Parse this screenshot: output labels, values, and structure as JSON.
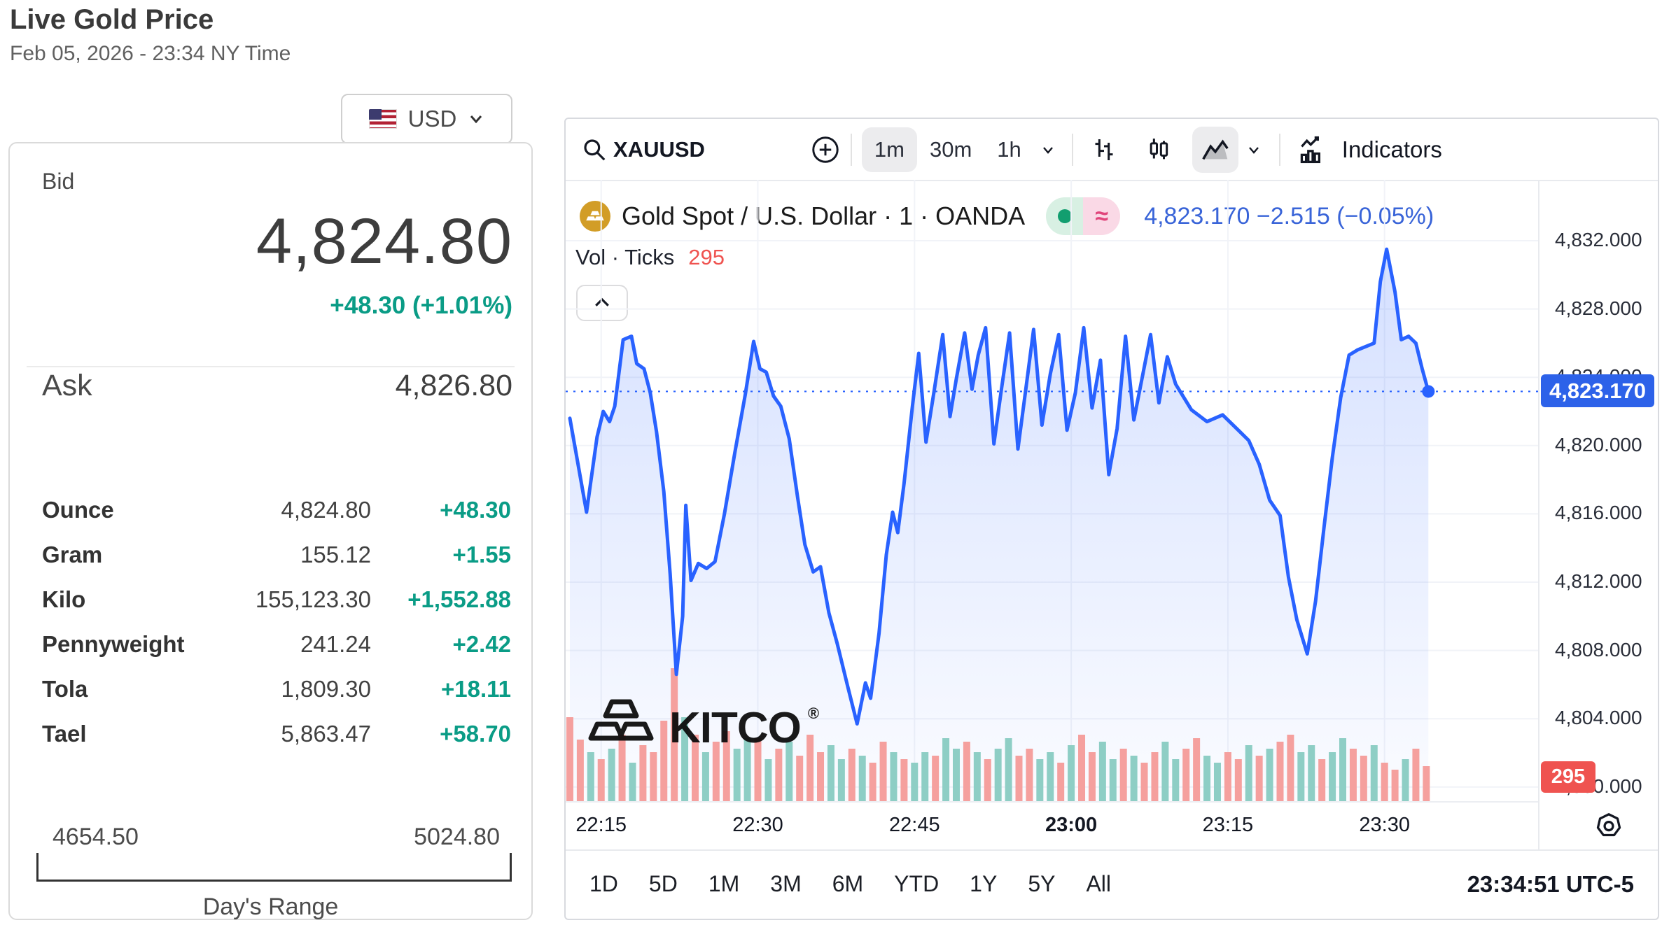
{
  "page": {
    "title": "Live Gold Price",
    "subtitle": "Feb 05, 2026 - 23:34 NY Time"
  },
  "currency": {
    "selected": "USD",
    "flag": "us-flag"
  },
  "bid_panel": {
    "bid_label": "Bid",
    "bid_value": "4,824.80",
    "bid_change": "+48.30 (+1.01%)",
    "ask_label": "Ask",
    "ask_value": "4,826.80"
  },
  "conversions": [
    {
      "unit": "Ounce",
      "price": "4,824.80",
      "change": "+48.30"
    },
    {
      "unit": "Gram",
      "price": "155.12",
      "change": "+1.55"
    },
    {
      "unit": "Kilo",
      "price": "155,123.30",
      "change": "+1,552.88"
    },
    {
      "unit": "Pennyweight",
      "price": "241.24",
      "change": "+2.42"
    },
    {
      "unit": "Tola",
      "price": "1,809.30",
      "change": "+18.11"
    },
    {
      "unit": "Tael",
      "price": "5,863.47",
      "change": "+58.70"
    }
  ],
  "days_range": {
    "low": "4654.50",
    "high": "5024.80",
    "label": "Day's Range"
  },
  "toolbar": {
    "symbol": "XAUUSD",
    "intervals": [
      {
        "label": "1m",
        "selected": true
      },
      {
        "label": "30m",
        "selected": false
      },
      {
        "label": "1h",
        "selected": false
      }
    ],
    "indicators_label": "Indicators"
  },
  "legend": {
    "title": "Gold Spot / U.S. Dollar · 1 · OANDA",
    "price_line": "4,823.170 −2.515 (−0.05%)",
    "vol_label": "Vol · Ticks",
    "vol_value": "295",
    "approx_symbol": "≈"
  },
  "watermark": {
    "text": "KITCO",
    "reg": "®"
  },
  "bottom_bar": {
    "ranges": [
      "1D",
      "5D",
      "1M",
      "3M",
      "6M",
      "YTD",
      "1Y",
      "5Y",
      "All"
    ],
    "clock": "23:34:51 UTC-5"
  },
  "colors": {
    "accent_teal": "#0a9c86",
    "tv_blue": "#2962ff",
    "price_text_blue": "#3964d8",
    "red": "#ef5350",
    "vol_up": "#8ecec5",
    "vol_down": "#f5a09e",
    "gold": "#d29d27",
    "grid": "#f1f3f8",
    "dotted_price_line": "#2962ff"
  },
  "chart_data": {
    "type": "area",
    "title": "Gold Spot / U.S. Dollar · 1 · OANDA",
    "x_axis": "time (NY), minutes after 22:00",
    "y_axis": "price USD",
    "x_domain_min": [
      11.6,
      104.7
    ],
    "ylim": [
      4798.4,
      4835.6
    ],
    "grid": true,
    "current_price": 4823.17,
    "current_price_label": "4,823.170",
    "last_point_min": 94.2,
    "y_ticks": [
      {
        "price": 4832,
        "label": "4,832.000"
      },
      {
        "price": 4828,
        "label": "4,828.000"
      },
      {
        "price": 4824,
        "label": "4,824.000"
      },
      {
        "price": 4820,
        "label": "4,820.000"
      },
      {
        "price": 4816,
        "label": "4,816.000"
      },
      {
        "price": 4812,
        "label": "4,812.000"
      },
      {
        "price": 4808,
        "label": "4,808.000"
      },
      {
        "price": 4804,
        "label": "4,804.000"
      },
      {
        "price": 4800,
        "label": "4,800.000"
      }
    ],
    "x_ticks": [
      {
        "t": 15,
        "label": "22:15",
        "bold": false
      },
      {
        "t": 30,
        "label": "22:30",
        "bold": false
      },
      {
        "t": 45,
        "label": "22:45",
        "bold": false
      },
      {
        "t": 60,
        "label": "23:00",
        "bold": true
      },
      {
        "t": 75,
        "label": "23:15",
        "bold": false
      },
      {
        "t": 90,
        "label": "23:30",
        "bold": false
      }
    ],
    "series": [
      [
        12,
        4821.6
      ],
      [
        12.7,
        4819.2
      ],
      [
        13.6,
        4816.1
      ],
      [
        14.6,
        4820.5
      ],
      [
        15.2,
        4822
      ],
      [
        15.8,
        4821.4
      ],
      [
        16.3,
        4822.3
      ],
      [
        17.1,
        4826.2
      ],
      [
        17.9,
        4826.4
      ],
      [
        18.4,
        4824.8
      ],
      [
        19.1,
        4824.5
      ],
      [
        19.7,
        4823.1
      ],
      [
        20.3,
        4820.8
      ],
      [
        21,
        4817.3
      ],
      [
        21.6,
        4812.5
      ],
      [
        22.2,
        4806.6
      ],
      [
        22.8,
        4810
      ],
      [
        23.1,
        4816.5
      ],
      [
        23.6,
        4812.1
      ],
      [
        24.3,
        4813.1
      ],
      [
        25.1,
        4812.8
      ],
      [
        25.9,
        4813.2
      ],
      [
        26.8,
        4816
      ],
      [
        27.8,
        4819.6
      ],
      [
        28.8,
        4823
      ],
      [
        29.6,
        4826.1
      ],
      [
        30.2,
        4824.5
      ],
      [
        30.8,
        4824.3
      ],
      [
        31.5,
        4822.9
      ],
      [
        32.2,
        4822.3
      ],
      [
        33,
        4820.4
      ],
      [
        33.8,
        4817
      ],
      [
        34.5,
        4814.2
      ],
      [
        35.3,
        4812.6
      ],
      [
        36,
        4812.9
      ],
      [
        36.8,
        4810.2
      ],
      [
        37.6,
        4808.4
      ],
      [
        38.6,
        4805.9
      ],
      [
        39.5,
        4803.7
      ],
      [
        40.3,
        4806.1
      ],
      [
        40.8,
        4805.2
      ],
      [
        41.6,
        4809
      ],
      [
        42.3,
        4813.6
      ],
      [
        42.9,
        4816.1
      ],
      [
        43.4,
        4814.9
      ],
      [
        44,
        4817.8
      ],
      [
        44.8,
        4822.3
      ],
      [
        45.4,
        4825.4
      ],
      [
        46.1,
        4820.2
      ],
      [
        46.9,
        4823.3
      ],
      [
        47.7,
        4826.5
      ],
      [
        48.4,
        4821.7
      ],
      [
        49,
        4823.9
      ],
      [
        49.8,
        4826.6
      ],
      [
        50.5,
        4823.3
      ],
      [
        51.1,
        4825.3
      ],
      [
        51.8,
        4826.9
      ],
      [
        52.6,
        4820.1
      ],
      [
        53.3,
        4823.2
      ],
      [
        54.1,
        4826.6
      ],
      [
        54.9,
        4819.8
      ],
      [
        55.7,
        4823.5
      ],
      [
        56.4,
        4826.8
      ],
      [
        57.2,
        4821.2
      ],
      [
        58,
        4824.2
      ],
      [
        58.8,
        4826.5
      ],
      [
        59.6,
        4820.9
      ],
      [
        60.4,
        4823.1
      ],
      [
        61.2,
        4826.9
      ],
      [
        62,
        4822.2
      ],
      [
        62.8,
        4825
      ],
      [
        63.6,
        4818.3
      ],
      [
        64.4,
        4821
      ],
      [
        65.2,
        4826.4
      ],
      [
        66,
        4821.5
      ],
      [
        66.8,
        4824
      ],
      [
        67.6,
        4826.5
      ],
      [
        68.4,
        4822.5
      ],
      [
        69.2,
        4825.2
      ],
      [
        70,
        4823.6
      ],
      [
        71.5,
        4822.1
      ],
      [
        73,
        4821.4
      ],
      [
        74.5,
        4821.8
      ],
      [
        76,
        4820.9
      ],
      [
        77,
        4820.3
      ],
      [
        78,
        4818.9
      ],
      [
        79,
        4816.8
      ],
      [
        80,
        4815.9
      ],
      [
        80.8,
        4812.3
      ],
      [
        81.6,
        4809.8
      ],
      [
        82.6,
        4807.8
      ],
      [
        83.4,
        4810.9
      ],
      [
        84.2,
        4815.2
      ],
      [
        85,
        4819.3
      ],
      [
        85.8,
        4822.8
      ],
      [
        86.6,
        4825.3
      ],
      [
        87.4,
        4825.6
      ],
      [
        88.2,
        4825.8
      ],
      [
        89,
        4826
      ],
      [
        89.6,
        4829.6
      ],
      [
        90.2,
        4831.5
      ],
      [
        91,
        4829
      ],
      [
        91.6,
        4826.2
      ],
      [
        92.3,
        4826.4
      ],
      [
        93,
        4826
      ],
      [
        93.6,
        4824.5
      ],
      [
        94.2,
        4823.17
      ]
    ],
    "volume": {
      "t_start": 12,
      "t_step": 1,
      "heights": [
        120,
        88,
        70,
        60,
        75,
        95,
        55,
        80,
        70,
        115,
        190,
        120,
        95,
        70,
        85,
        100,
        75,
        90,
        90,
        60,
        75,
        85,
        65,
        95,
        70,
        80,
        60,
        75,
        65,
        55,
        85,
        70,
        60,
        55,
        70,
        65,
        90,
        75,
        85,
        70,
        60,
        75,
        90,
        65,
        75,
        60,
        70,
        55,
        80,
        95,
        70,
        85,
        60,
        75,
        65,
        55,
        70,
        85,
        60,
        75,
        90,
        65,
        55,
        70,
        60,
        80,
        65,
        75,
        85,
        95,
        70,
        80,
        60,
        70,
        90,
        75,
        65,
        80,
        55,
        45,
        60,
        75,
        50
      ],
      "dirs_segments": [
        "ddudududdddududduudu",
        "duddduudud",
        "duduuduudu",
        "duudduudud",
        "duududduud",
        "duuddududd",
        "uuduuddudd",
        "udd"
      ]
    }
  }
}
